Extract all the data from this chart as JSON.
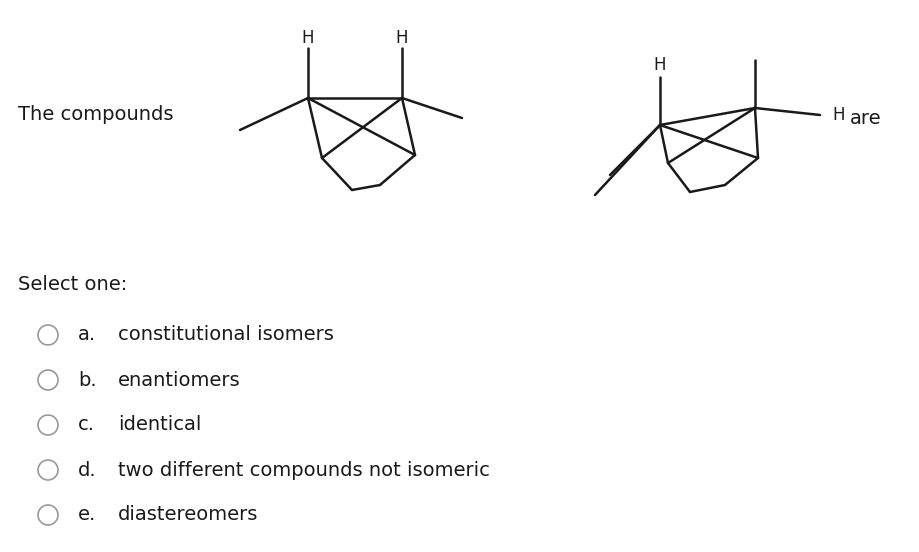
{
  "background_color": "#ffffff",
  "text_color": "#1a1a1a",
  "title_text": "The compounds",
  "are_text": "are",
  "select_one_text": "Select one:",
  "options": [
    {
      "letter": "a.",
      "text": "constitutional isomers"
    },
    {
      "letter": "b.",
      "text": "enantiomers"
    },
    {
      "letter": "c.",
      "text": "identical"
    },
    {
      "letter": "d.",
      "text": "two different compounds not isomeric"
    },
    {
      "letter": "e.",
      "text": "diastereomers"
    }
  ],
  "radio_color": "#999999",
  "line_color": "#1a1a1a",
  "font_size_body": 14,
  "font_size_label": 14,
  "font_size_H": 12,
  "line_width": 1.8
}
